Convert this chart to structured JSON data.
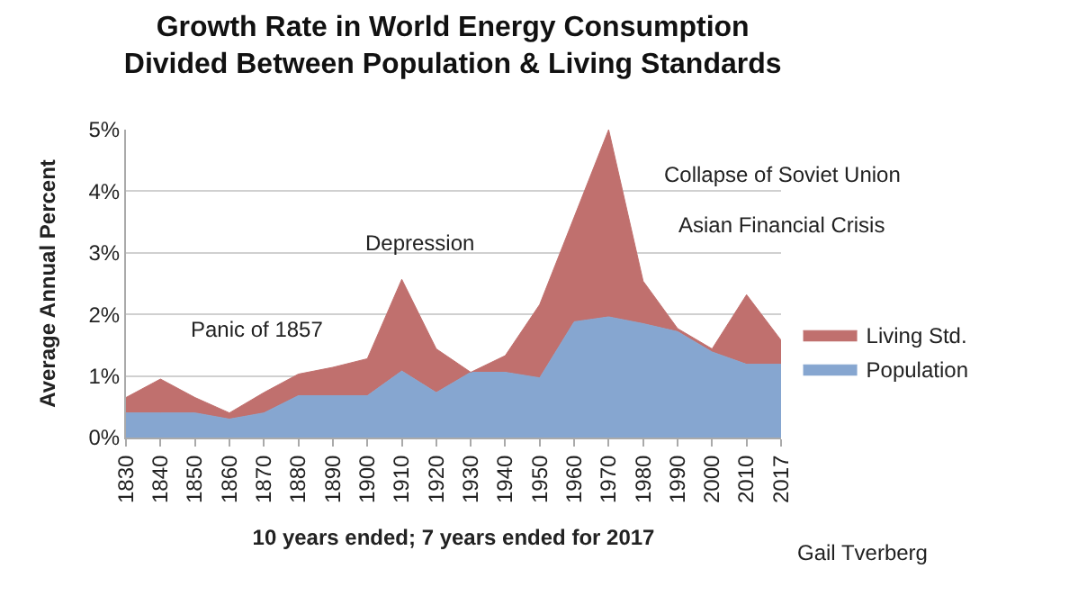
{
  "chart_data": {
    "type": "area",
    "stacked": true,
    "title": "Growth Rate in World Energy Consumption\nDivided Between Population & Living Standards",
    "xlabel": "10 years ended; 7 years ended for 2017",
    "ylabel": "Average Annual Percent",
    "categories": [
      "1830",
      "1840",
      "1850",
      "1860",
      "1870",
      "1880",
      "1890",
      "1900",
      "1910",
      "1920",
      "1930",
      "1940",
      "1950",
      "1960",
      "1970",
      "1980",
      "1990",
      "2000",
      "2010",
      "2017"
    ],
    "series": [
      {
        "name": "Population",
        "color": "#86a6d0",
        "values": [
          0.4,
          0.4,
          0.4,
          0.3,
          0.4,
          0.68,
          0.68,
          0.68,
          1.08,
          0.73,
          1.06,
          1.06,
          0.97,
          1.88,
          1.96,
          1.85,
          1.72,
          1.39,
          1.19,
          1.19
        ]
      },
      {
        "name": "Living Std.",
        "color": "#c0706e",
        "values": [
          0.25,
          0.55,
          0.25,
          0.1,
          0.33,
          0.35,
          0.46,
          0.6,
          1.49,
          0.71,
          0,
          0.27,
          1.19,
          1.7,
          3.04,
          0.69,
          0.05,
          0.05,
          1.13,
          0.39
        ]
      }
    ],
    "ylim": [
      0,
      5
    ],
    "yticks": [
      {
        "value": 0,
        "label": "0%"
      },
      {
        "value": 1,
        "label": "1%"
      },
      {
        "value": 2,
        "label": "2%"
      },
      {
        "value": 3,
        "label": "3%"
      },
      {
        "value": 4,
        "label": "4%"
      },
      {
        "value": 5,
        "label": "5%"
      }
    ],
    "grid": "y",
    "legend": "right",
    "annotations": [
      "Panic of 1857",
      "Depression",
      "Collapse of Soviet Union",
      "Asian Financial Crisis",
      "Gail Tverberg"
    ]
  }
}
